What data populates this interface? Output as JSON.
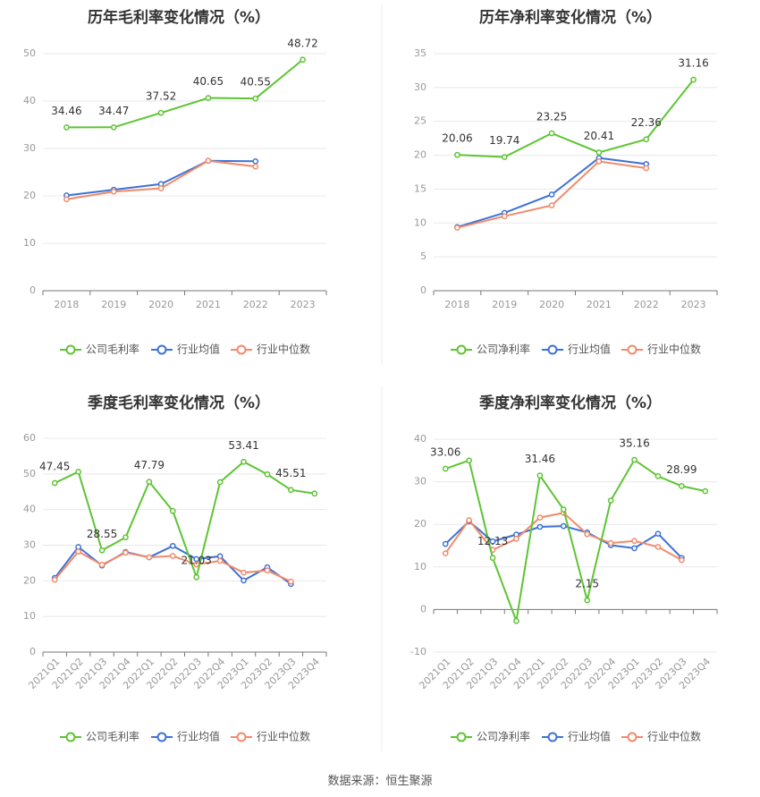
{
  "source_label": "数据来源：恒生聚源",
  "colors": {
    "company": "#5ec434",
    "industry_avg": "#3d72d6",
    "industry_median": "#f28a6a"
  },
  "chart_data": [
    {
      "type": "line",
      "title": "历年毛利率变化情况（%）",
      "categories": [
        "2018",
        "2019",
        "2020",
        "2021",
        "2022",
        "2023"
      ],
      "ylim": [
        0,
        50
      ],
      "yticks": [
        0,
        10,
        20,
        30,
        40,
        50
      ],
      "grid": true,
      "legend_position": "bottom",
      "series": [
        {
          "name": "公司毛利率",
          "color": "#5ec434",
          "values": [
            34.46,
            34.47,
            37.52,
            40.65,
            40.55,
            48.72
          ],
          "labels": [
            "34.46",
            "34.47",
            "37.52",
            "40.65",
            "40.55",
            "48.72"
          ]
        },
        {
          "name": "行业均值",
          "color": "#3d72d6",
          "values": [
            20.1,
            21.3,
            22.5,
            27.4,
            27.3,
            null
          ]
        },
        {
          "name": "行业中位数",
          "color": "#f28a6a",
          "values": [
            19.3,
            20.9,
            21.6,
            27.4,
            26.2,
            null
          ]
        }
      ]
    },
    {
      "type": "line",
      "title": "历年净利率变化情况（%）",
      "categories": [
        "2018",
        "2019",
        "2020",
        "2021",
        "2022",
        "2023"
      ],
      "ylim": [
        0,
        35
      ],
      "yticks": [
        0,
        5,
        10,
        15,
        20,
        25,
        30,
        35
      ],
      "grid": true,
      "legend_position": "bottom",
      "series": [
        {
          "name": "公司净利率",
          "color": "#5ec434",
          "values": [
            20.06,
            19.74,
            23.25,
            20.41,
            22.36,
            31.16
          ],
          "labels": [
            "20.06",
            "19.74",
            "23.25",
            "20.41",
            "22.36",
            "31.16"
          ]
        },
        {
          "name": "行业均值",
          "color": "#3d72d6",
          "values": [
            9.4,
            11.5,
            14.2,
            19.6,
            18.7,
            null
          ]
        },
        {
          "name": "行业中位数",
          "color": "#f28a6a",
          "values": [
            9.3,
            11.0,
            12.6,
            19.1,
            18.1,
            null
          ]
        }
      ]
    },
    {
      "type": "line",
      "title": "季度毛利率变化情况（%）",
      "categories": [
        "2021Q1",
        "2021Q2",
        "2021Q3",
        "2021Q4",
        "2022Q1",
        "2022Q2",
        "2022Q3",
        "2022Q4",
        "2023Q1",
        "2023Q2",
        "2023Q3",
        "2023Q4"
      ],
      "ylim": [
        0,
        60
      ],
      "yticks": [
        0,
        10,
        20,
        30,
        40,
        50,
        60
      ],
      "grid": true,
      "legend_position": "bottom",
      "series": [
        {
          "name": "公司毛利率",
          "color": "#5ec434",
          "values": [
            47.45,
            50.6,
            28.55,
            32.2,
            47.79,
            39.6,
            21.03,
            47.7,
            53.41,
            49.9,
            45.51,
            44.5
          ],
          "labels": [
            "47.45",
            "",
            "28.55",
            "",
            "47.79",
            "",
            "21.03",
            "",
            "53.41",
            "",
            "45.51",
            ""
          ]
        },
        {
          "name": "行业均值",
          "color": "#3d72d6",
          "values": [
            20.8,
            29.5,
            24.3,
            28.1,
            26.6,
            29.8,
            26.1,
            26.9,
            20.1,
            23.8,
            19.1,
            null
          ]
        },
        {
          "name": "行业中位数",
          "color": "#f28a6a",
          "values": [
            20.3,
            28.2,
            24.5,
            27.9,
            26.6,
            27.0,
            24.6,
            25.6,
            22.3,
            22.9,
            19.8,
            null
          ]
        }
      ]
    },
    {
      "type": "line",
      "title": "季度净利率变化情况（%）",
      "categories": [
        "2021Q1",
        "2021Q2",
        "2021Q3",
        "2021Q4",
        "2022Q1",
        "2022Q2",
        "2022Q3",
        "2022Q4",
        "2023Q1",
        "2023Q2",
        "2023Q3",
        "2023Q4"
      ],
      "ylim": [
        -10,
        40
      ],
      "yticks": [
        -10,
        0,
        10,
        20,
        30,
        40
      ],
      "grid": true,
      "legend_position": "bottom",
      "series": [
        {
          "name": "公司净利率",
          "color": "#5ec434",
          "values": [
            33.06,
            35.0,
            12.13,
            -2.7,
            31.46,
            23.5,
            2.15,
            25.6,
            35.16,
            31.3,
            28.99,
            27.8
          ],
          "labels": [
            "33.06",
            "",
            "12.13",
            "",
            "31.46",
            "",
            "2.15",
            "",
            "35.16",
            "",
            "28.99",
            ""
          ]
        },
        {
          "name": "行业均值",
          "color": "#3d72d6",
          "values": [
            15.4,
            20.7,
            16.0,
            17.6,
            19.4,
            19.6,
            18.1,
            15.1,
            14.4,
            17.8,
            12.1,
            null
          ]
        },
        {
          "name": "行业中位数",
          "color": "#f28a6a",
          "values": [
            13.2,
            21.0,
            14.0,
            16.6,
            21.6,
            22.7,
            17.7,
            15.6,
            16.1,
            14.7,
            11.6,
            null
          ]
        }
      ]
    }
  ]
}
